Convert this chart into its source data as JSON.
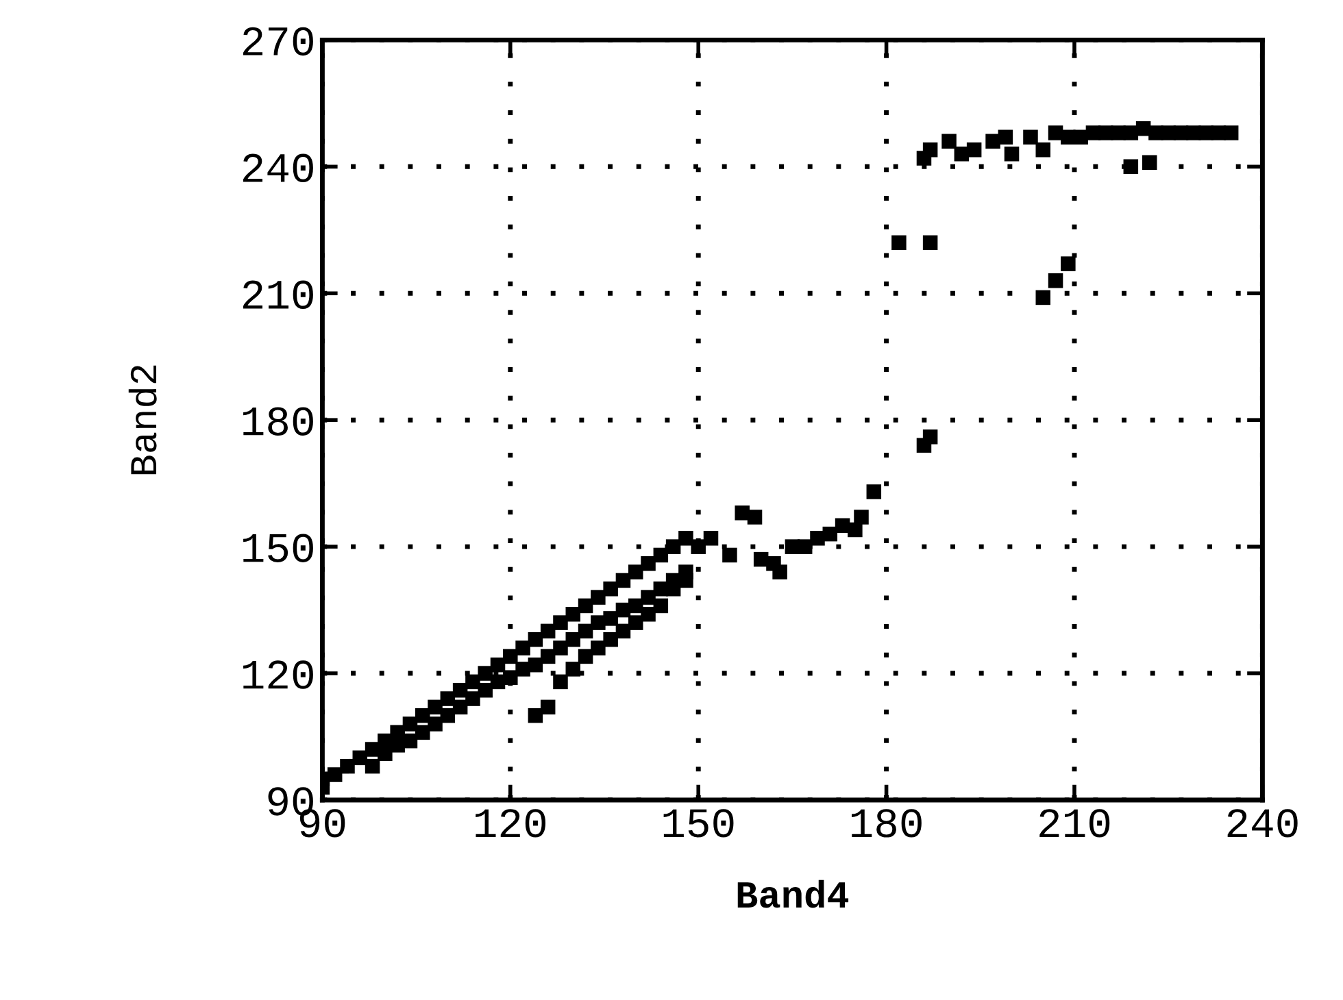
{
  "chart_data": {
    "type": "scatter",
    "xlabel": "Band4",
    "ylabel": "Band2",
    "xlim": [
      90,
      240
    ],
    "ylim": [
      90,
      270
    ],
    "xticks": [
      90,
      120,
      150,
      180,
      210,
      240
    ],
    "yticks": [
      90,
      120,
      150,
      180,
      210,
      240,
      270
    ],
    "grid": true,
    "marker": "square",
    "series": [
      {
        "color": "#000000",
        "x": [
          90,
          90,
          92,
          94,
          96,
          98,
          98,
          100,
          100,
          102,
          102,
          104,
          104,
          106,
          106,
          108,
          108,
          110,
          110,
          112,
          112,
          114,
          114,
          116,
          116,
          118,
          118,
          120,
          120,
          122,
          122,
          124,
          124,
          124,
          126,
          126,
          126,
          128,
          128,
          128,
          130,
          130,
          130,
          132,
          132,
          132,
          134,
          134,
          134,
          136,
          136,
          136,
          138,
          138,
          138,
          140,
          140,
          140,
          142,
          142,
          142,
          144,
          144,
          144,
          146,
          146,
          146,
          148,
          148,
          148,
          150,
          152,
          155,
          157,
          159,
          160,
          162,
          163,
          165,
          167,
          169,
          171,
          173,
          175,
          176,
          178,
          182,
          187,
          186,
          187,
          205,
          207,
          209,
          186,
          187,
          190,
          192,
          194,
          197,
          199,
          200,
          203,
          205,
          207,
          209,
          211,
          213,
          215,
          217,
          219,
          221,
          223,
          225,
          227,
          229,
          231,
          233,
          235,
          219,
          222
        ],
        "values": [
          93,
          95,
          96,
          98,
          100,
          98,
          102,
          101,
          104,
          103,
          106,
          104,
          108,
          106,
          110,
          108,
          112,
          110,
          114,
          112,
          116,
          114,
          118,
          116,
          120,
          118,
          122,
          119,
          124,
          121,
          126,
          122,
          128,
          110,
          124,
          130,
          112,
          126,
          132,
          118,
          128,
          134,
          121,
          130,
          136,
          124,
          132,
          138,
          126,
          133,
          140,
          128,
          135,
          142,
          130,
          136,
          144,
          132,
          138,
          146,
          134,
          140,
          148,
          136,
          142,
          150,
          140,
          144,
          152,
          142,
          150,
          152,
          148,
          158,
          157,
          147,
          146,
          144,
          150,
          150,
          152,
          153,
          155,
          154,
          157,
          163,
          222,
          222,
          174,
          176,
          209,
          213,
          217,
          242,
          244,
          246,
          243,
          244,
          246,
          247,
          243,
          247,
          244,
          248,
          247,
          247,
          248,
          248,
          248,
          248,
          249,
          248,
          248,
          248,
          248,
          248,
          248,
          248,
          240,
          241
        ]
      }
    ]
  }
}
